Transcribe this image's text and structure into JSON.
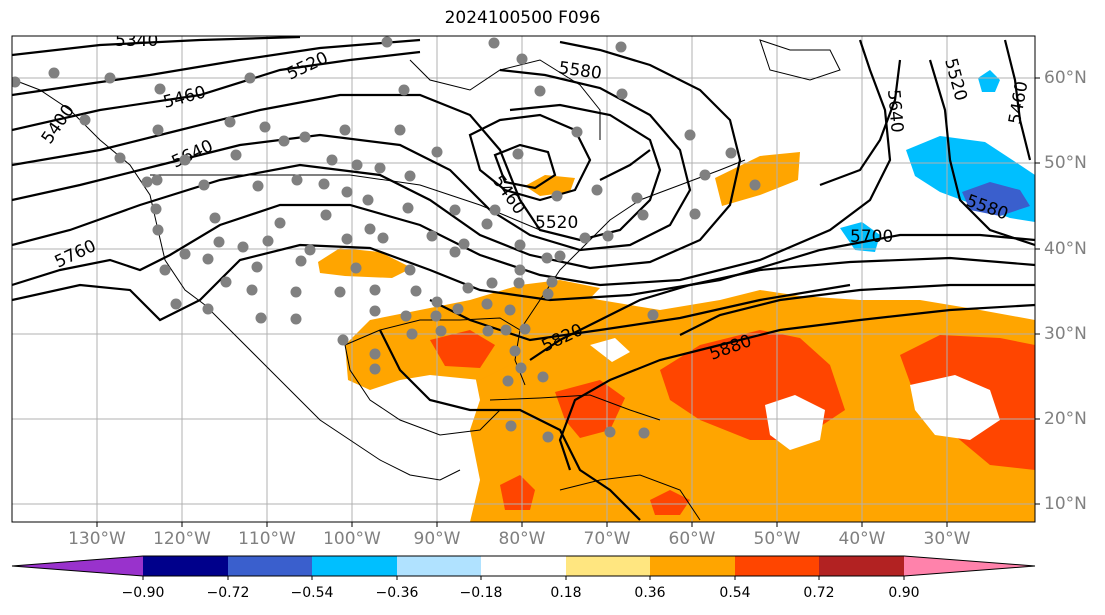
{
  "title": "2024100500 F096",
  "longitude_labels": [
    "130°W",
    "120°W",
    "110°W",
    "100°W",
    "90°W",
    "80°W",
    "70°W",
    "60°W",
    "50°W",
    "40°W",
    "30°W"
  ],
  "latitude_labels": [
    "60°N",
    "50°N",
    "40°N",
    "30°N",
    "20°N",
    "10°N"
  ],
  "colorbar": {
    "tick_labels": [
      "−0.90",
      "−0.72",
      "−0.54",
      "−0.36",
      "−0.18",
      "0.18",
      "0.36",
      "0.54",
      "0.72",
      "0.90"
    ],
    "colors": [
      "#9932cc",
      "#00008b",
      "#3a5fcd",
      "#00bfff",
      "#b0e2ff",
      "#ffffff",
      "#ffe680",
      "#ffa500",
      "#ff4500",
      "#b22222",
      "#ff82ab"
    ]
  },
  "contour_labels": [
    {
      "text": "5340"
    },
    {
      "text": "5520"
    },
    {
      "text": "5460"
    },
    {
      "text": "5400"
    },
    {
      "text": "5640"
    },
    {
      "text": "5760"
    },
    {
      "text": "5580"
    },
    {
      "text": "5460"
    },
    {
      "text": "5520"
    },
    {
      "text": "5520"
    },
    {
      "text": "5640"
    },
    {
      "text": "5460"
    },
    {
      "text": "5580"
    },
    {
      "text": "5700"
    },
    {
      "text": "5820"
    },
    {
      "text": "5880"
    }
  ],
  "fill_colors": {
    "orange": "#ffa500",
    "red_orange": "#ff4500",
    "sky_blue": "#00bfff",
    "royal_blue": "#3a5fcd"
  },
  "station_marker_color": "#808080"
}
